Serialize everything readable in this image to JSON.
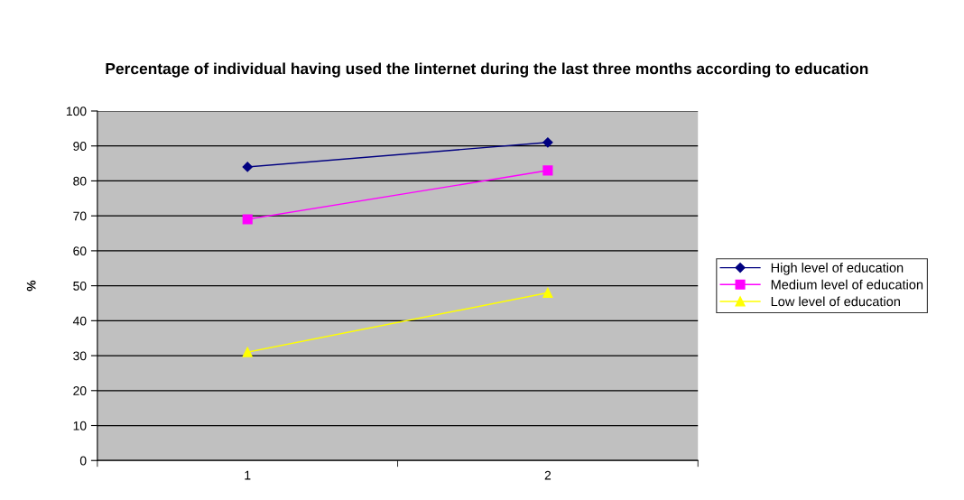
{
  "chart_data": {
    "type": "line",
    "title": "Percentage of individual having used the Iinternet during the last three months according to education",
    "ylabel": "%",
    "categories": [
      "1",
      "2"
    ],
    "series": [
      {
        "name": "High level of education",
        "color": "#000080",
        "marker": "diamond",
        "values": [
          84,
          91
        ]
      },
      {
        "name": "Medium level of education",
        "color": "#ff00ff",
        "marker": "square",
        "values": [
          69,
          83
        ]
      },
      {
        "name": "Low level of education",
        "color": "#ffff00",
        "marker": "triangle",
        "values": [
          31,
          48
        ]
      }
    ],
    "ylim": [
      0,
      100
    ],
    "yticks": [
      0,
      10,
      20,
      30,
      40,
      50,
      60,
      70,
      80,
      90,
      100
    ],
    "grid": "y",
    "legend": "right",
    "line_style": "solid"
  }
}
